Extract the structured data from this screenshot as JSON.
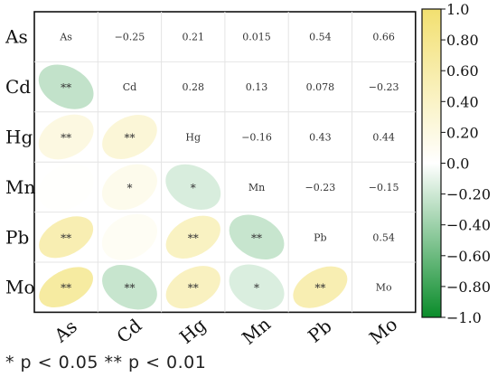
{
  "chart_data": {
    "type": "heatmap",
    "variables": [
      "As",
      "Cd",
      "Hg",
      "Mn",
      "Pb",
      "Mo"
    ],
    "coefficients": [
      [
        null,
        -0.25,
        0.21,
        0.015,
        0.54,
        0.66
      ],
      [
        -0.25,
        null,
        0.28,
        0.13,
        0.078,
        -0.23
      ],
      [
        0.21,
        0.28,
        null,
        -0.16,
        0.43,
        0.44
      ],
      [
        0.015,
        0.13,
        -0.16,
        null,
        -0.23,
        -0.15
      ],
      [
        0.54,
        0.078,
        0.43,
        -0.23,
        null,
        0.54
      ],
      [
        0.66,
        -0.23,
        0.44,
        -0.15,
        0.54,
        null
      ]
    ],
    "upper_labels": [
      [
        "As",
        "−0.25",
        "0.21",
        "0.015",
        "0.54",
        "0.66"
      ],
      [
        "",
        "Cd",
        "0.28",
        "0.13",
        "0.078",
        "−0.23"
      ],
      [
        "",
        "",
        "Hg",
        "−0.16",
        "0.43",
        "0.44"
      ],
      [
        "",
        "",
        "",
        "Mn",
        "−0.23",
        "−0.15"
      ],
      [
        "",
        "",
        "",
        "",
        "Pb",
        "0.54"
      ],
      [
        "",
        "",
        "",
        "",
        "",
        "Mo"
      ]
    ],
    "significance": [
      [
        "",
        "",
        "",
        "",
        "",
        ""
      ],
      [
        "**",
        "",
        "",
        "",
        "",
        ""
      ],
      [
        "**",
        "**",
        "",
        "",
        "",
        ""
      ],
      [
        "",
        "*",
        "*",
        "",
        "",
        ""
      ],
      [
        "**",
        "",
        "**",
        "**",
        "",
        ""
      ],
      [
        "**",
        "**",
        "**",
        "*",
        "**",
        ""
      ]
    ],
    "colorbar": {
      "range": [
        -1.0,
        1.0
      ],
      "ticks": [
        "−1.0",
        "−0.80",
        "−0.60",
        "−0.40",
        "−0.20",
        "0.0",
        "0.20",
        "0.40",
        "0.60",
        "0.80",
        "1.0"
      ],
      "colors": {
        "negative": "#0a8c2a",
        "neutral": "#ffffff",
        "positive": "#f2e070"
      }
    },
    "lower_triangle": "ellipses",
    "grid": true
  },
  "footnote": "* p < 0.05   ** p < 0.01"
}
